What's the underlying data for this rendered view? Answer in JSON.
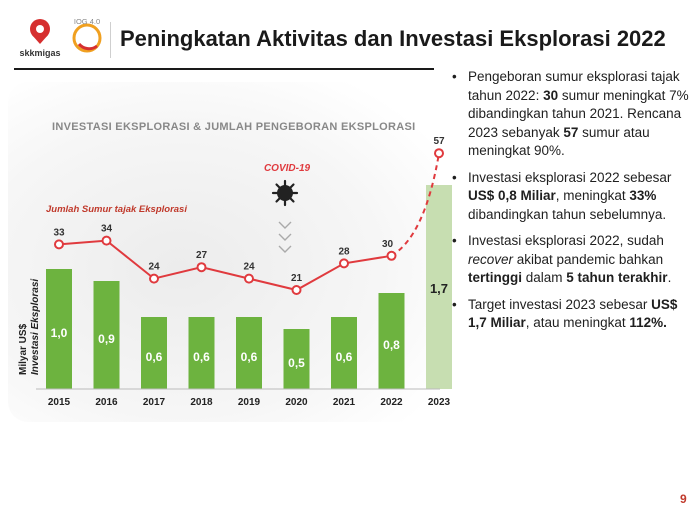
{
  "header": {
    "logo_text": "skkmigas",
    "logo2_text": "IOG 4.0",
    "title": "Peningkatan Aktivitas dan Investasi Eksplorasi 2022"
  },
  "chart_data": {
    "type": "bar",
    "title": "INVESTASI EKSPLORASI & JUMLAH PENGEBORAN EKSPLORASI",
    "categories": [
      "2015",
      "2016",
      "2017",
      "2018",
      "2019",
      "2020",
      "2021",
      "2022",
      "2023"
    ],
    "ylabel_line1": "Milyar US$",
    "ylabel_line2": "Investasi Eksplorasi",
    "series": [
      {
        "values": [
          1.0,
          0.9,
          0.6,
          0.6,
          0.6,
          0.5,
          0.6,
          0.8,
          1.7
        ],
        "labels": [
          "1,0",
          "0,9",
          "0,6",
          "0,6",
          "0,6",
          "0,5",
          "0,6",
          "0,8",
          "1,7"
        ]
      },
      {
        "name": "Jumlah Sumur tajak Eksplorasi",
        "values": [
          33,
          34,
          24,
          27,
          24,
          21,
          28,
          30,
          57
        ]
      }
    ],
    "annotation": "COVID-19",
    "colors": {
      "bar": "#6db33f",
      "bar_forecast": "#c7deb1",
      "line": "#e03a3e"
    }
  },
  "bullets": [
    [
      "Pengeboran sumur eksplorasi tajak tahun 2022: ",
      "30",
      "*",
      " sumur meningkat 7% dibandingkan tahun 2021. Rencana 2023 sebanyak ",
      "57",
      "*",
      " sumur atau meningkat 90%."
    ],
    [
      "Investasi eksplorasi 2022 sebesar ",
      "US$ 0,8 Miliar",
      "*",
      ", meningkat ",
      "33%",
      "*",
      " dibandingkan tahun sebelumnya."
    ],
    [
      "Investasi eksplorasi 2022, sudah ",
      "recover",
      "_",
      " akibat pandemic bahkan ",
      "tertinggi",
      "*",
      " dalam ",
      "5 tahun terakhir",
      "*",
      "."
    ],
    [
      "Target investasi 2023 sebesar ",
      "US$ 1,7 Miliar",
      "*",
      ", atau meningkat ",
      "112%.",
      "*"
    ]
  ],
  "page_number": "9"
}
